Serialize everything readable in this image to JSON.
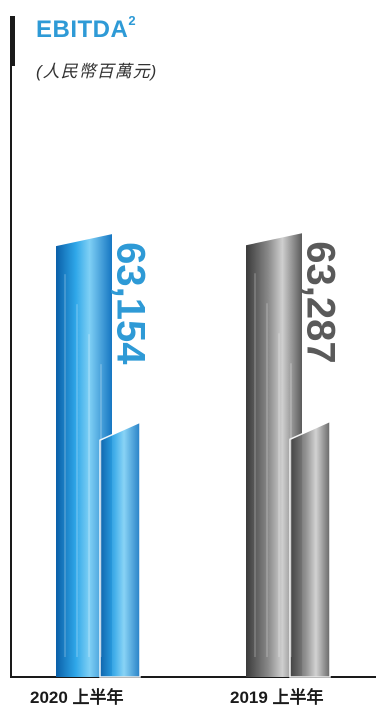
{
  "title": {
    "main": "EBITDA",
    "superscript": "2",
    "unit": "(人民幣百萬元)"
  },
  "chart_data": {
    "type": "bar",
    "title": "EBITDA² (人民幣百萬元)",
    "categories": [
      "2020 上半年",
      "2019 上半年"
    ],
    "values": [
      63154,
      63287
    ],
    "value_labels": [
      "63,154",
      "63,287"
    ],
    "colors": [
      "#2e9ad6",
      "#5a5a5a"
    ],
    "ylim": [
      0,
      75000
    ],
    "grid": false,
    "legend": "none"
  }
}
